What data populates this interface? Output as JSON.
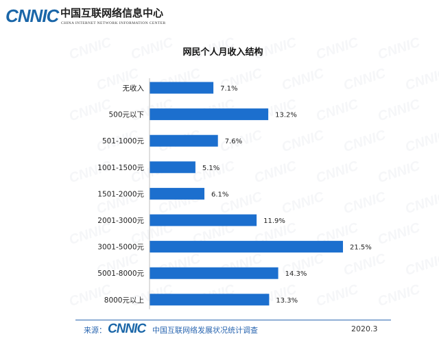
{
  "header": {
    "logo_text": "CNNIC",
    "org_cn": "中国互联网络信息中心",
    "org_en": "CHINA INTERNET NETWORK INFORMATION CENTER"
  },
  "watermark_text": "CNNIC",
  "chart_data": {
    "type": "bar",
    "orientation": "horizontal",
    "title": "网民个人月收入结构",
    "categories": [
      "无收入",
      "500元以下",
      "501-1000元",
      "1001-1500元",
      "1501-2000元",
      "2001-3000元",
      "3001-5000元",
      "5001-8000元",
      "8000元以上"
    ],
    "values": [
      7.1,
      13.2,
      7.6,
      5.1,
      6.1,
      11.9,
      21.5,
      14.3,
      13.3
    ],
    "value_labels": [
      "7.1%",
      "13.2%",
      "7.6%",
      "5.1%",
      "6.1%",
      "11.9%",
      "21.5%",
      "14.3%",
      "13.3%"
    ],
    "unit": "%",
    "xlim": [
      0,
      21.5
    ],
    "grid": false,
    "bar_color": "#1c6fce"
  },
  "footer": {
    "source_label": "来源：",
    "logo_text": "CNNIC",
    "org_text": "中国互联网络发展状况统计调查",
    "date": "2020.3"
  }
}
